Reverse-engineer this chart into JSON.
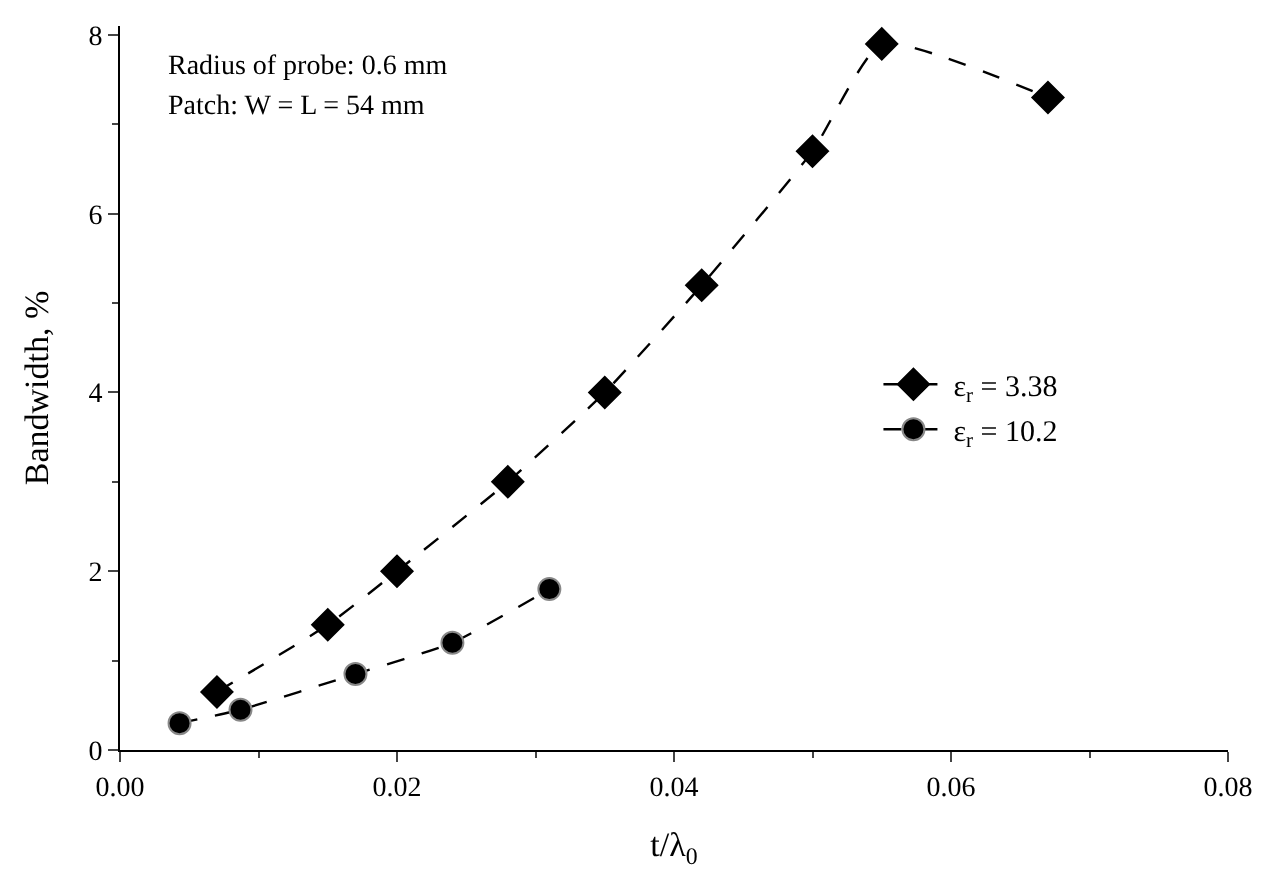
{
  "chart_data": {
    "type": "line",
    "xlabel": "t/λ$_{0}$",
    "ylabel": "Bandwidth, %",
    "annotations": [
      "Radius of probe: 0.6 mm",
      "Patch: W = L = 54 mm"
    ],
    "series": [
      {
        "name": "ε$_{r}$ = 3.38",
        "color": "#000000",
        "marker": "diamond",
        "x": [
          0.007,
          0.015,
          0.02,
          0.028,
          0.035,
          0.042,
          0.05,
          0.055,
          0.067
        ],
        "values": [
          0.65,
          1.4,
          2.0,
          3.0,
          4.0,
          5.2,
          6.7,
          7.9,
          7.3
        ]
      },
      {
        "name": "ε$_{r}$ = 10.2",
        "color": "#000000",
        "marker": "circle",
        "x": [
          0.0043,
          0.0087,
          0.017,
          0.024,
          0.031
        ],
        "values": [
          0.3,
          0.45,
          0.85,
          1.2,
          1.8
        ]
      }
    ],
    "xlim": [
      0,
      0.08
    ],
    "xticks": [
      {
        "value": 0,
        "label": "0.00"
      },
      0.02,
      0.04,
      0.06,
      0.08
    ],
    "ylim": [
      0,
      8.1
    ],
    "yticks": [
      0,
      2,
      4,
      6,
      8
    ],
    "legend": "right",
    "line_style": "dashed"
  }
}
